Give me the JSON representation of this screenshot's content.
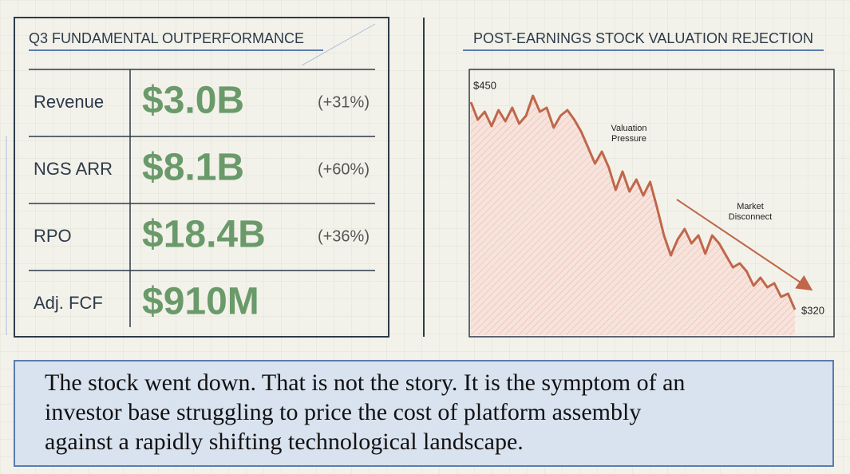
{
  "metrics_panel": {
    "title": "Q3 FUNDAMENTAL OUTPERFORMANCE",
    "rows": [
      {
        "label": "Revenue",
        "value": "$3.0B",
        "change": "(+31%)"
      },
      {
        "label": "NGS ARR",
        "value": "$8.1B",
        "change": "(+60%)"
      },
      {
        "label": "RPO",
        "value": "$18.4B",
        "change": "(+36%)"
      },
      {
        "label": "Adj. FCF",
        "value": "$910M"
      }
    ]
  },
  "chart_data": {
    "type": "line",
    "title": "POST-EARNINGS STOCK VALUATION REJECTION",
    "color": "#c0674a",
    "values": [
      450,
      439,
      444,
      435,
      445,
      438,
      446.5,
      436.5,
      441.5,
      454,
      444,
      446.5,
      434,
      441.5,
      445,
      439,
      431.5,
      421.5,
      411.5,
      419,
      409,
      395,
      406.5,
      394,
      401.5,
      391.5,
      400,
      384,
      366.5,
      354,
      364,
      370.5,
      361.5,
      366.5,
      355,
      366.5,
      361.5,
      354,
      346.5,
      349,
      344,
      335,
      340,
      334,
      336.5,
      328,
      330,
      320
    ],
    "value_labels": [
      "$450",
      null,
      null,
      null,
      null,
      null,
      null,
      null,
      null,
      null,
      null,
      null,
      null,
      null,
      null,
      null,
      null,
      null,
      null,
      null,
      null,
      null,
      null,
      null,
      null,
      null,
      null,
      null,
      null,
      null,
      null,
      null,
      null,
      null,
      null,
      null,
      null,
      null,
      null,
      null,
      null,
      null,
      null,
      null,
      null,
      null,
      null,
      "$320"
    ],
    "annotations": [
      {
        "lines": [
          "Valuation",
          "Pressure"
        ]
      },
      {
        "lines": [
          "Market",
          "Disconnect"
        ]
      }
    ]
  },
  "caption": {
    "lines": [
      "The stock went down. That is not the story. It is the symptom of an",
      "investor base struggling to price the cost of platform assembly",
      "against a rapidly shifting technological landscape."
    ]
  }
}
